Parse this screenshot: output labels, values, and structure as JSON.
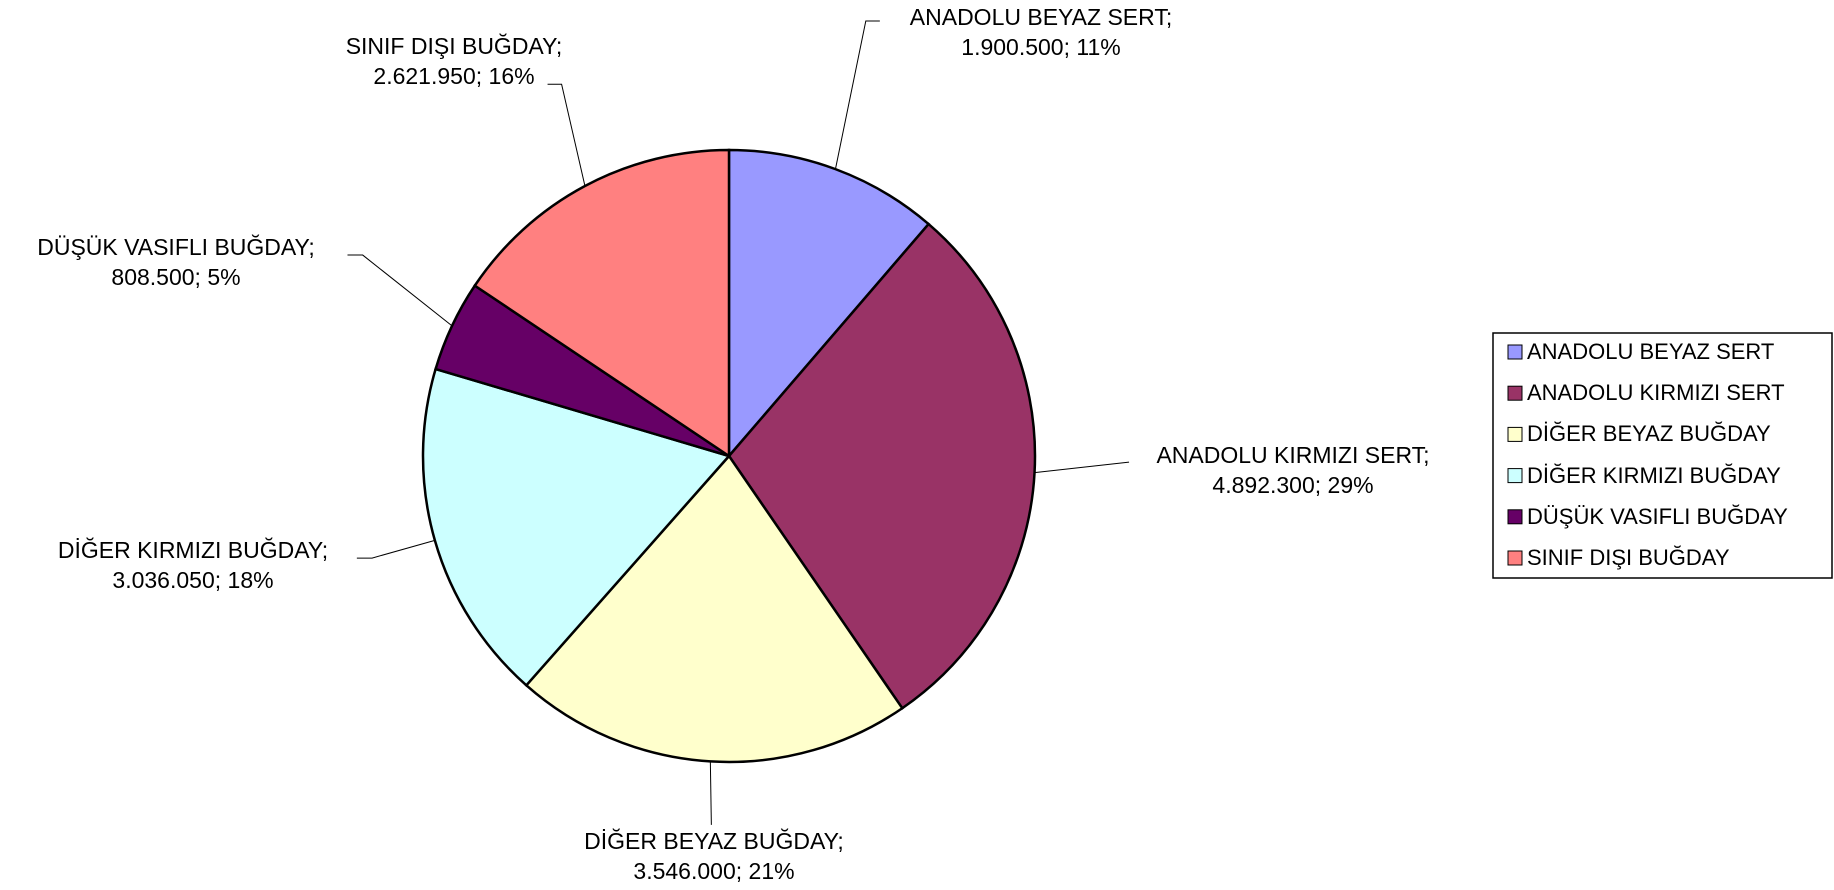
{
  "chart_data": {
    "type": "pie",
    "categories": [
      "ANADOLU BEYAZ SERT",
      "ANADOLU KIRMIZI SERT",
      "DİĞER BEYAZ BUĞDAY",
      "DİĞER KIRMIZI BUĞDAY",
      "DÜŞÜK VASIFLI BUĞDAY",
      "SINIF DIŞI BUĞDAY"
    ],
    "values": [
      1900500,
      4892300,
      3546000,
      3036050,
      808500,
      2621950
    ],
    "value_labels": [
      "ANADOLU BEYAZ SERT;\n1.900.500; 11%",
      "ANADOLU KIRMIZI SERT;\n4.892.300; 29%",
      "DİĞER BEYAZ BUĞDAY;\n3.546.000; 21%",
      "DİĞER KIRMIZI BUĞDAY;\n3.036.050; 18%",
      "DÜŞÜK VASIFLI BUĞDAY;\n808.500; 5%",
      "SINIF DIŞI BUĞDAY;\n2.621.950; 16%"
    ],
    "colors": [
      "#9999ff",
      "#993366",
      "#ffffcc",
      "#ccffff",
      "#660066",
      "#ff8080"
    ],
    "legend": "right"
  }
}
